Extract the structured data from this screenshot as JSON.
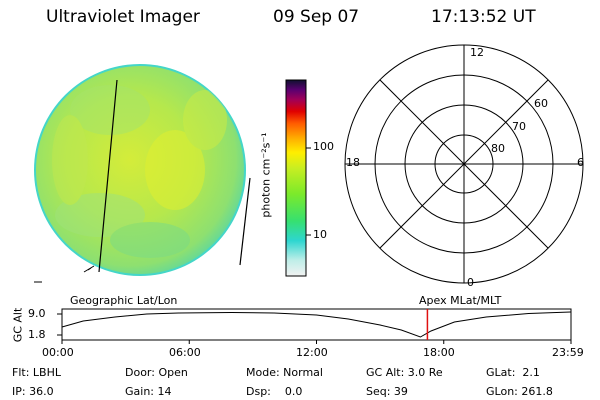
{
  "header": {
    "title": "Ultraviolet Imager",
    "date": "09 Sep 07",
    "time": "17:13:52 UT"
  },
  "colorbar": {
    "label": "photon cm⁻²s⁻¹",
    "ticks": [
      "100",
      "10"
    ]
  },
  "polar": {
    "mlt_labels": [
      "12",
      "18",
      "6",
      "0"
    ],
    "lat_labels": [
      "60",
      "70",
      "80"
    ]
  },
  "timeline": {
    "left_caption": "Geographic Lat/Lon",
    "right_caption": "Apex MLat/MLT",
    "axis_title": "GC Alt",
    "ytick_top": "9.0",
    "ytick_bottom": "1.8",
    "xticks": [
      "00:00",
      "06:00",
      "12:00",
      "18:00",
      "23:59"
    ],
    "current_marker_hours": 17.23,
    "marker_color": "#e01010"
  },
  "status": {
    "flt": "Flt: LBHL",
    "door": "Door: Open",
    "mode": "Mode: Normal",
    "gc_alt": "GC Alt: 3.0 Re",
    "glat": "GLat:  2.1",
    "ip": "IP: 36.0",
    "gain": "Gain: 14",
    "dsp": "Dsp:    0.0",
    "seq": "Seq: 39",
    "glon": "GLon: 261.8"
  }
}
